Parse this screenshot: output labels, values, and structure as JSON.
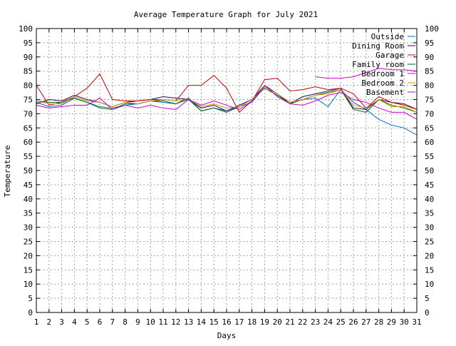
{
  "chart_data": {
    "type": "line",
    "title": "Average Temperature Graph for July 2021",
    "xlabel": "Days",
    "ylabel": "Temperature",
    "xlim": [
      1,
      31
    ],
    "ylim": [
      0,
      100
    ],
    "y_tick_step": 5,
    "y_axis_right": true,
    "grid": true,
    "legend_position": "top-right",
    "x": [
      1,
      2,
      3,
      4,
      5,
      6,
      7,
      8,
      9,
      10,
      11,
      12,
      13,
      14,
      15,
      16,
      17,
      18,
      19,
      20,
      21,
      22,
      23,
      24,
      25,
      26,
      27,
      28,
      29,
      30,
      31
    ],
    "x_tick_labels": [
      "1",
      "2",
      "3",
      "4",
      "5",
      "6",
      "7",
      "8",
      "9",
      "10",
      "11",
      "12",
      "13",
      "14",
      "15",
      "16",
      "17",
      "18",
      "19",
      "20",
      "21",
      "22",
      "23",
      "24",
      "25",
      "26",
      "27",
      "28",
      "29",
      "30",
      "31"
    ],
    "y_tick_labels": [
      "0",
      "5",
      "10",
      "15",
      "20",
      "25",
      "30",
      "35",
      "40",
      "45",
      "50",
      "55",
      "60",
      "65",
      "70",
      "75",
      "80",
      "85",
      "90",
      "95",
      "100"
    ],
    "series": [
      {
        "name": "Outside",
        "color": "#0066cc",
        "values": [
          74,
          72.5,
          73,
          75.5,
          74,
          72.5,
          72,
          73,
          73.5,
          74.5,
          74,
          73.5,
          75,
          71,
          72,
          71,
          72.5,
          74,
          79.5,
          77,
          74,
          75,
          75.5,
          72.5,
          78.5,
          74,
          71.5,
          68,
          66,
          65,
          62.5
        ]
      },
      {
        "name": "Dining Room",
        "color": "#330066",
        "values": [
          73.5,
          75,
          74.5,
          76.5,
          75,
          74,
          72.5,
          74,
          74.5,
          75,
          76,
          75.5,
          75,
          72,
          73,
          71,
          73,
          75,
          80,
          77,
          73.5,
          76,
          77,
          78,
          79,
          72,
          71.5,
          75,
          74,
          73.5,
          71.5
        ]
      },
      {
        "name": "Garage",
        "color": "#cc0000",
        "values": [
          80,
          73,
          74,
          76,
          79,
          84,
          75,
          74.5,
          74.5,
          75,
          75,
          74.5,
          80,
          80,
          83.5,
          79,
          70.5,
          74.5,
          82,
          82.5,
          78,
          78.5,
          79.5,
          78.5,
          79,
          77,
          72,
          76,
          74,
          73,
          71.5
        ]
      },
      {
        "name": "Family room",
        "color": "#006600",
        "values": [
          74.5,
          74,
          74,
          75.5,
          74,
          72,
          71.5,
          73.5,
          73.5,
          74.5,
          74.5,
          73.5,
          75.5,
          71,
          72,
          70.5,
          72.5,
          75,
          79,
          76.5,
          73.5,
          75,
          76.5,
          77.5,
          78.5,
          71.5,
          70.5,
          75,
          73,
          72,
          70.5
        ]
      },
      {
        "name": "Bedroom 1",
        "color": "#cc00cc",
        "values": [
          null,
          null,
          null,
          null,
          null,
          null,
          null,
          null,
          null,
          null,
          null,
          null,
          null,
          null,
          null,
          null,
          null,
          null,
          null,
          null,
          null,
          null,
          83,
          82.5,
          82.5,
          83,
          84.5,
          86,
          85.5,
          85.5,
          85
        ]
      },
      {
        "name": "Bedroom 2",
        "color": "#cc9900",
        "values": [
          74.5,
          73.5,
          73.5,
          76,
          74.5,
          74,
          72.5,
          74,
          73.5,
          74.5,
          75,
          74.5,
          75,
          72.5,
          73.5,
          72,
          72.5,
          75,
          79.5,
          77,
          74,
          75,
          76.5,
          77,
          78.5,
          73,
          72,
          75,
          72.5,
          72.5,
          70.5
        ]
      },
      {
        "name": "Basement",
        "color": "#cc00cc",
        "values": [
          73,
          72,
          72.5,
          73,
          73,
          75.5,
          71.5,
          73,
          72,
          73,
          72,
          71.5,
          75,
          73,
          74.5,
          73,
          71.5,
          74.5,
          80,
          76,
          73.5,
          73,
          74.5,
          76.5,
          77.5,
          75,
          74,
          72,
          70.5,
          70.5,
          68
        ]
      }
    ]
  }
}
